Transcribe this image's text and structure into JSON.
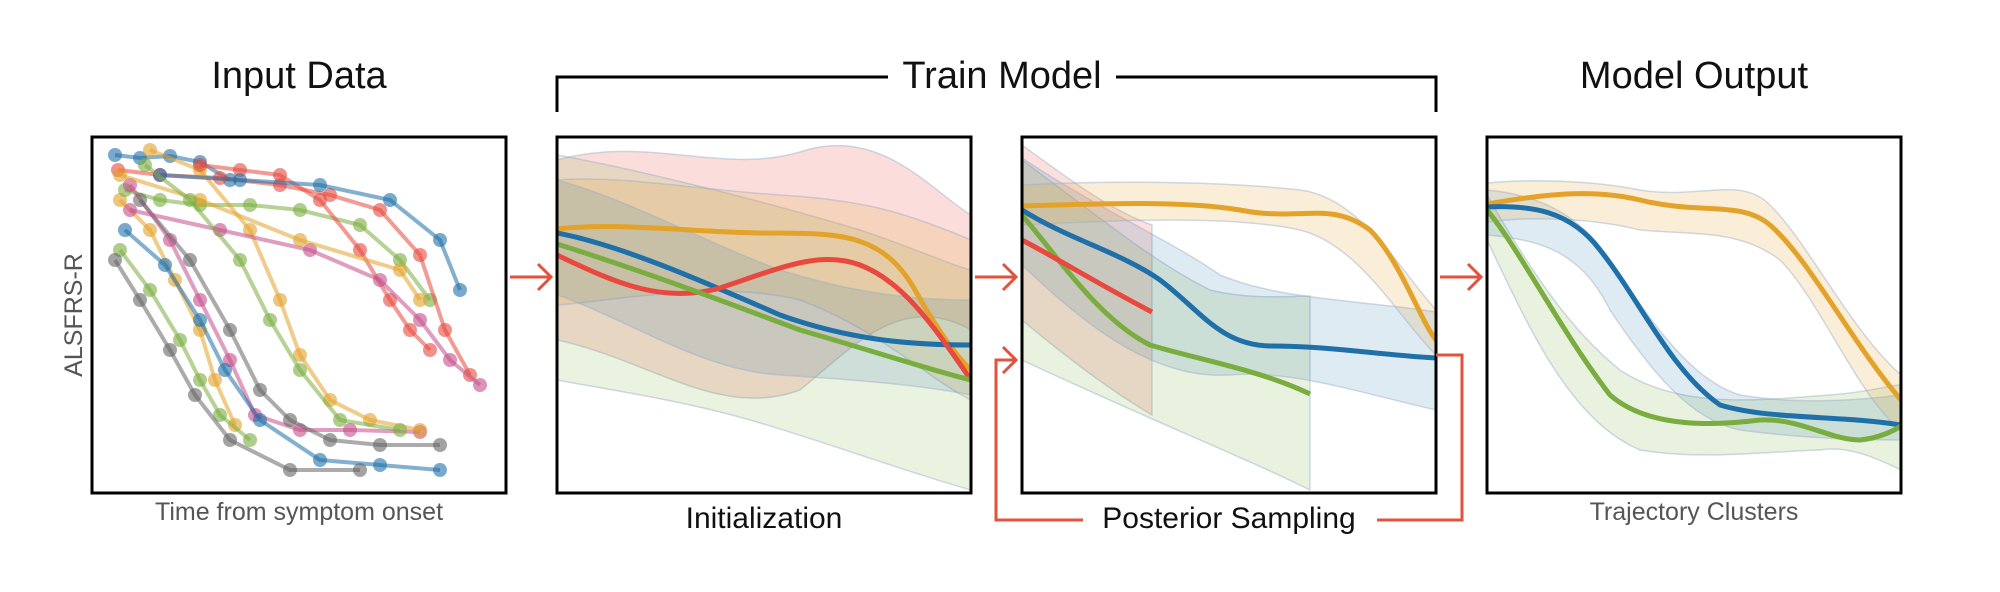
{
  "titles": {
    "input": "Input Data",
    "train": "Train Model",
    "output": "Model Output"
  },
  "labels": {
    "ylabel": "ALSFRS-R",
    "xlabel": "Time from symptom onset",
    "initialization": "Initialization",
    "posterior": "Posterior Sampling",
    "clusters": "Trajectory Clusters"
  },
  "colors": {
    "blue": "#1f6fa8",
    "orange": "#e3a22a",
    "green": "#7aad3f",
    "red": "#e8483d",
    "arrow": "#e0533f",
    "frame": "#000000"
  }
}
